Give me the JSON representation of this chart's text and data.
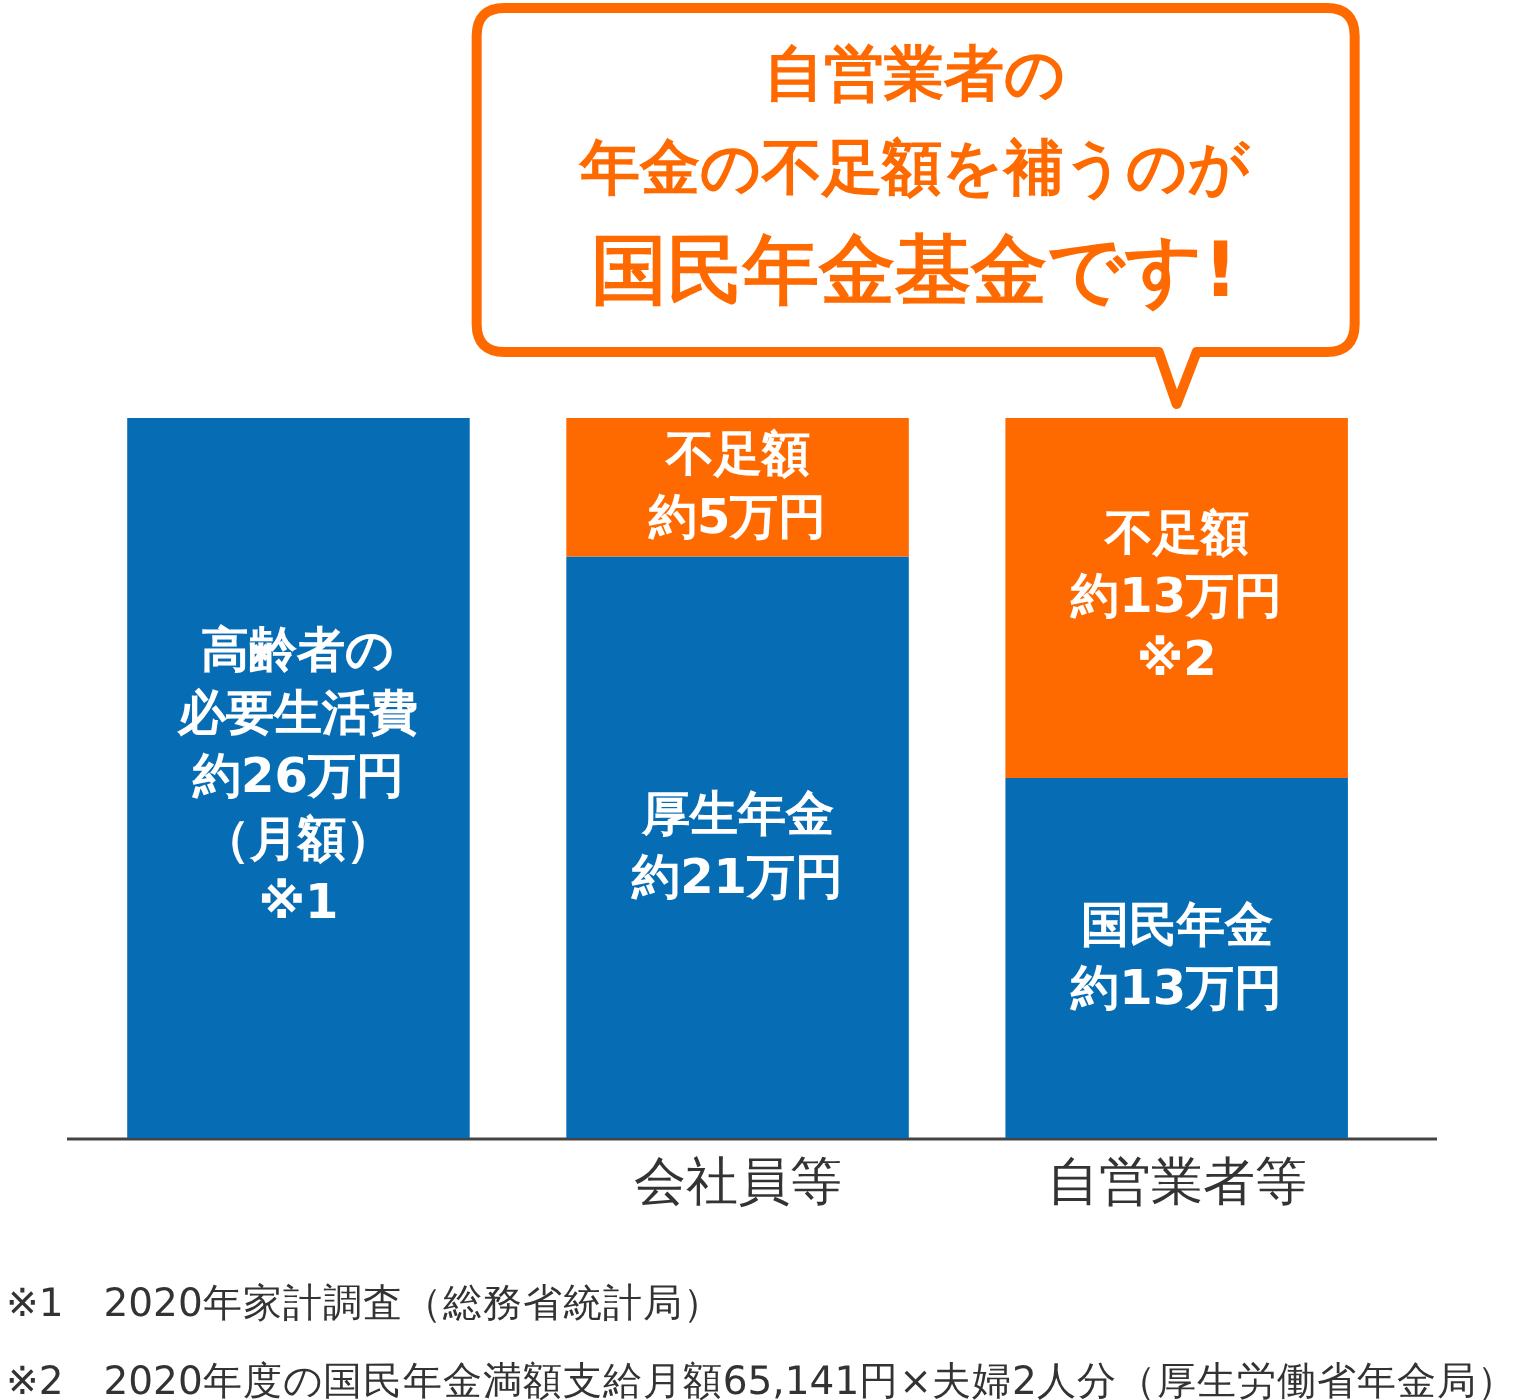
{
  "chart_data": {
    "type": "bar",
    "stacked": true,
    "tick_labels": "x",
    "categories": [
      null,
      "会社員等",
      "自営業者等"
    ],
    "series": [
      {
        "color": "#066cb4",
        "values": [
          26,
          21,
          13
        ],
        "value_labels": [
          "高齢者の必要生活費約26万円（月額）※1",
          "厚生年金約21万円",
          "国民年金約13万円"
        ]
      },
      {
        "color": "#ff6a00",
        "values": [
          null,
          5,
          13
        ],
        "value_labels": [
          null,
          "不足額約5万円",
          "不足額約13万円※2"
        ]
      }
    ],
    "annotations": [
      {
        "text": "自営業者の年金の不足額を補うのが国民年金基金です!",
        "x": "自営業者等",
        "y": 26
      },
      "※1　2020年家計調査（総務省統計局）",
      "※2　2020年度の国民年金満額支給月額65,141円×夫婦2人分（厚生労働省年金局）"
    ]
  }
}
